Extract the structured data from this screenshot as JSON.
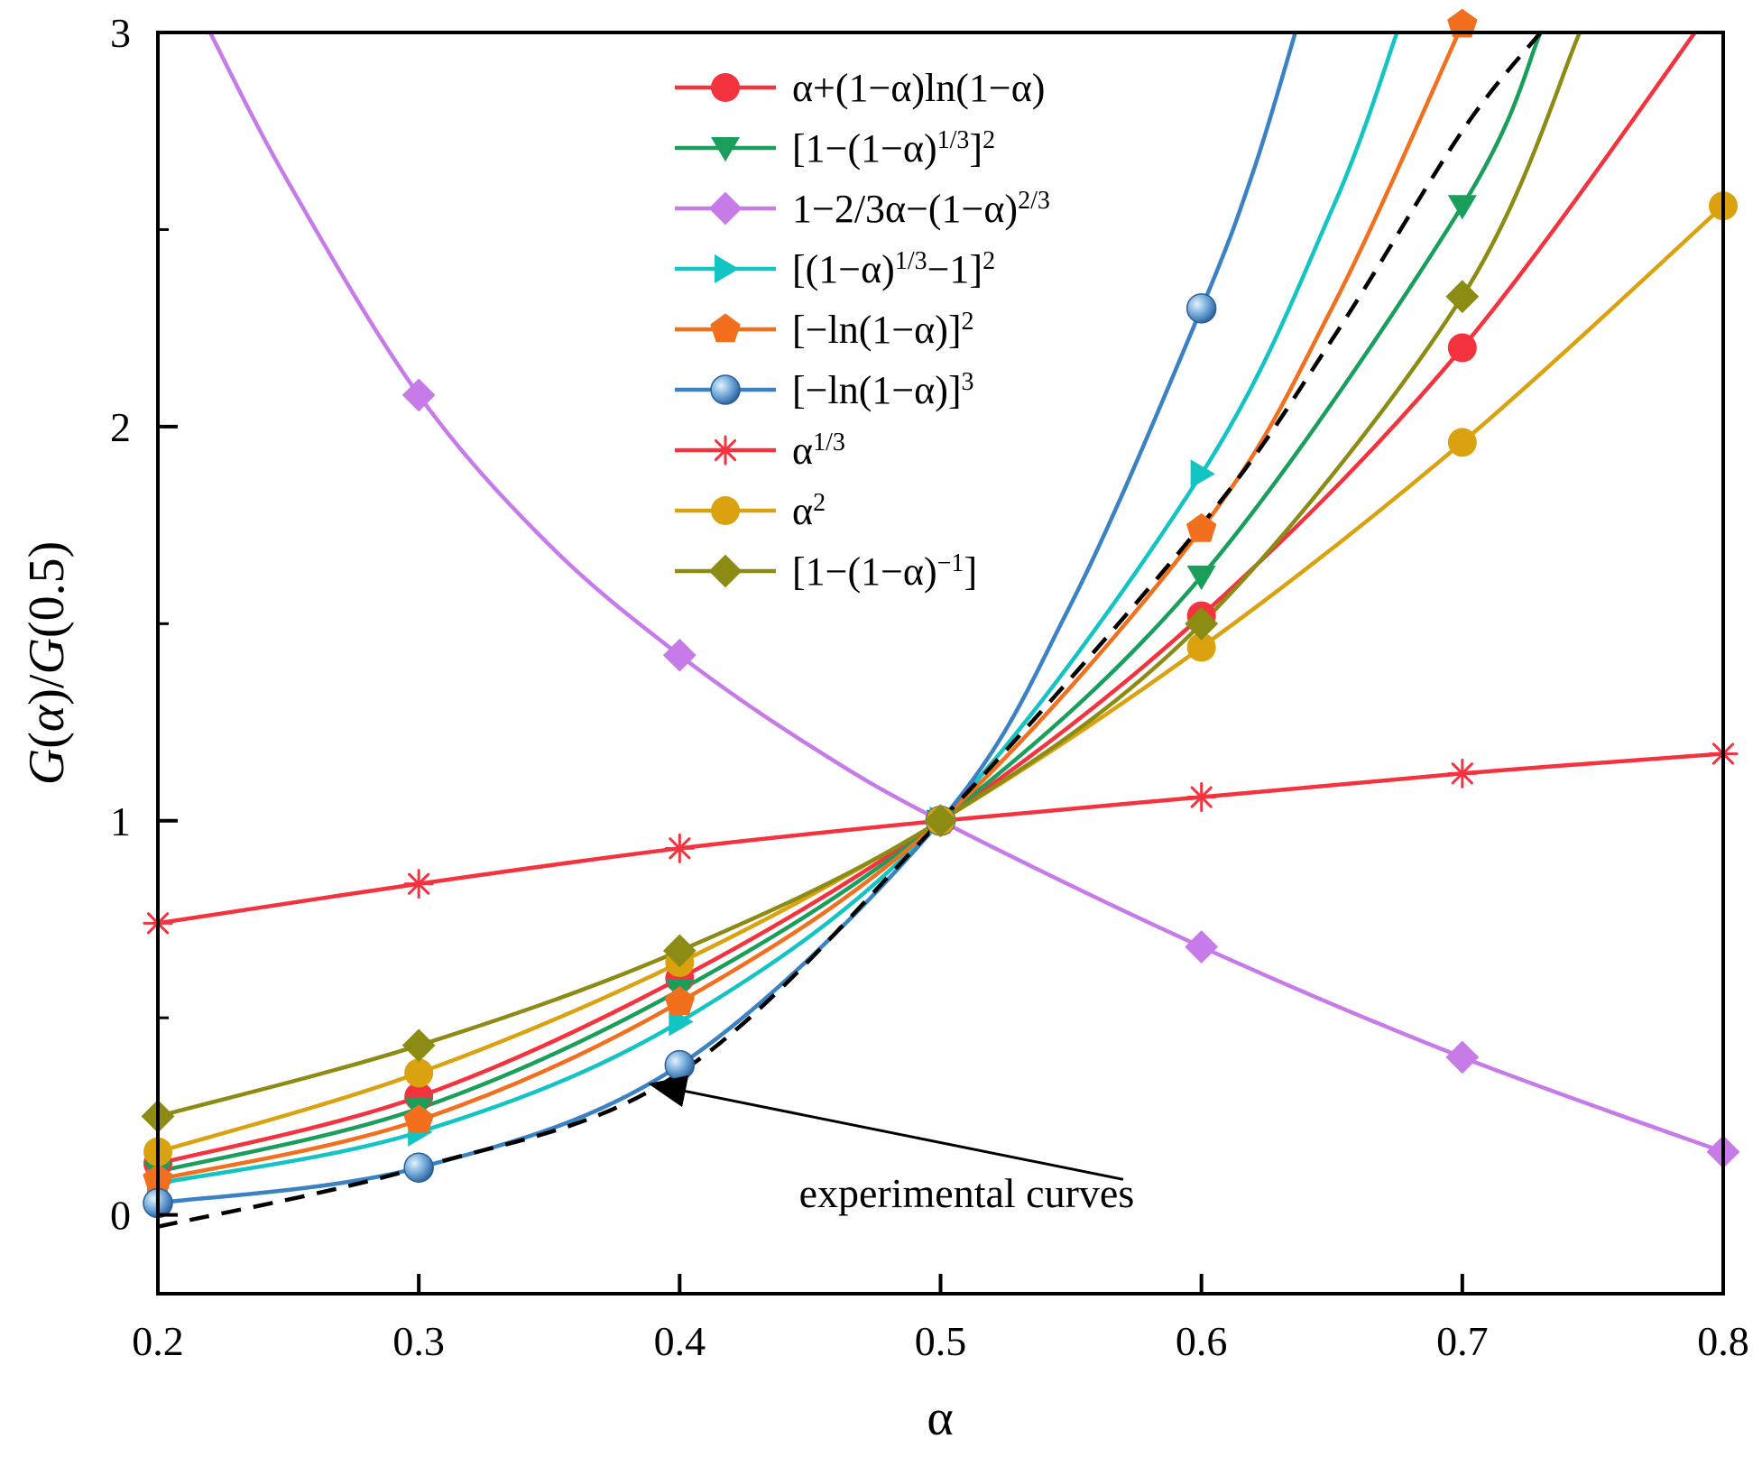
{
  "chart_data": {
    "type": "line",
    "title": "",
    "xlabel": "α",
    "ylabel": {
      "parts": [
        {
          "t": "G",
          "i": true
        },
        {
          "t": "(",
          "i": false
        },
        {
          "t": "α",
          "i": true
        },
        {
          "t": ")/",
          "i": false
        },
        {
          "t": "G",
          "i": true
        },
        {
          "t": "(0.5)",
          "i": false
        }
      ]
    },
    "xlim": [
      0.2,
      0.8
    ],
    "ylim": [
      -0.2,
      3
    ],
    "x_ticks": [
      0.2,
      0.3,
      0.4,
      0.5,
      0.6,
      0.7,
      0.8
    ],
    "x_tick_labels": [
      "0.2",
      "0.3",
      "0.4",
      "0.5",
      "0.6",
      "0.7",
      "0.8"
    ],
    "y_ticks": [
      0,
      1,
      2,
      3
    ],
    "y_tick_labels": [
      "0",
      "1",
      "2",
      "3"
    ],
    "y_minor_ticks": [
      0.5,
      1.5,
      2.5
    ],
    "grid": false,
    "legend_position": "top-center",
    "series": [
      {
        "legend": {
          "parts": [
            {
              "t": "α+(1−α)ln(1−α)"
            }
          ]
        },
        "color": "#f5333f",
        "marker": "circle",
        "x": [
          0.2,
          0.3,
          0.4,
          0.5,
          0.6,
          0.7,
          0.8,
          0.79
        ],
        "y": [
          0.13,
          0.3,
          0.6,
          1.0,
          1.52,
          2.2,
          3.1,
          3.0
        ],
        "markers_at": [
          0.2,
          0.3,
          0.4,
          0.5,
          0.6,
          0.7
        ]
      },
      {
        "legend": {
          "parts": [
            {
              "t": "[1−(1−α)"
            },
            {
              "t": "1/3",
              "s": "sup"
            },
            {
              "t": "]"
            },
            {
              "t": "2",
              "s": "sup"
            }
          ]
        },
        "color": "#1a9e5c",
        "marker": "triangle-down",
        "x": [
          0.2,
          0.3,
          0.4,
          0.5,
          0.6,
          0.7,
          0.73
        ],
        "y": [
          0.11,
          0.27,
          0.57,
          1.0,
          1.62,
          2.56,
          3.0
        ],
        "markers_at": [
          0.2,
          0.3,
          0.4,
          0.5,
          0.6,
          0.7
        ]
      },
      {
        "legend": {
          "parts": [
            {
              "t": "1−2/3α−(1−α)"
            },
            {
              "t": "2/3",
              "s": "sup"
            }
          ]
        },
        "color": "#c77be8",
        "marker": "diamond",
        "x": [
          0.22,
          0.25,
          0.3,
          0.35,
          0.4,
          0.45,
          0.5,
          0.6,
          0.7,
          0.8
        ],
        "y": [
          3.0,
          2.62,
          2.08,
          1.7,
          1.42,
          1.19,
          1.0,
          0.68,
          0.4,
          0.16
        ],
        "markers_at": [
          0.3,
          0.4,
          0.5,
          0.6,
          0.7,
          0.8
        ]
      },
      {
        "legend": {
          "parts": [
            {
              "t": "[(1−α)"
            },
            {
              "t": "1/3",
              "s": "sup"
            },
            {
              "t": "−1]"
            },
            {
              "t": "2",
              "s": "sup"
            }
          ]
        },
        "color": "#12c4c4",
        "marker": "triangle-right",
        "x": [
          0.2,
          0.3,
          0.4,
          0.5,
          0.6,
          0.65,
          0.675
        ],
        "y": [
          0.08,
          0.21,
          0.49,
          1.0,
          1.88,
          2.55,
          3.0
        ],
        "markers_at": [
          0.2,
          0.3,
          0.4,
          0.5,
          0.6
        ]
      },
      {
        "legend": {
          "parts": [
            {
              "t": "[−ln(1−α)]"
            },
            {
              "t": "2",
              "s": "sup"
            }
          ]
        },
        "color": "#f26f1e",
        "marker": "pentagon",
        "x": [
          0.2,
          0.3,
          0.4,
          0.5,
          0.6,
          0.65,
          0.7
        ],
        "y": [
          0.09,
          0.24,
          0.54,
          1.0,
          1.74,
          2.3,
          3.02
        ],
        "markers_at": [
          0.2,
          0.3,
          0.4,
          0.5,
          0.6,
          0.7
        ]
      },
      {
        "legend": {
          "parts": [
            {
              "t": "[−ln(1−α)]"
            },
            {
              "t": "3",
              "s": "sup"
            }
          ]
        },
        "color": "#3b82c4",
        "marker": "sphere",
        "x": [
          0.2,
          0.3,
          0.4,
          0.5,
          0.55,
          0.6,
          0.62,
          0.636
        ],
        "y": [
          0.03,
          0.12,
          0.38,
          1.0,
          1.55,
          2.3,
          2.65,
          3.0
        ],
        "markers_at": [
          0.2,
          0.3,
          0.4,
          0.5,
          0.6
        ]
      },
      {
        "legend": {
          "parts": [
            {
              "t": "α"
            },
            {
              "t": "1/3",
              "s": "sup"
            }
          ]
        },
        "color": "#f5333f",
        "marker": "star",
        "x": [
          0.2,
          0.3,
          0.4,
          0.5,
          0.6,
          0.7,
          0.8
        ],
        "y": [
          0.74,
          0.84,
          0.93,
          1.0,
          1.06,
          1.12,
          1.17
        ],
        "markers_at": [
          0.2,
          0.3,
          0.4,
          0.5,
          0.6,
          0.7,
          0.8
        ]
      },
      {
        "legend": {
          "parts": [
            {
              "t": "α"
            },
            {
              "t": "2",
              "s": "sup"
            }
          ]
        },
        "color": "#daa20e",
        "marker": "hexagon",
        "x": [
          0.2,
          0.3,
          0.4,
          0.5,
          0.6,
          0.7,
          0.8
        ],
        "y": [
          0.16,
          0.36,
          0.64,
          1.0,
          1.44,
          1.96,
          2.56
        ],
        "markers_at": [
          0.2,
          0.3,
          0.4,
          0.5,
          0.6,
          0.7,
          0.8
        ]
      },
      {
        "legend": {
          "parts": [
            {
              "t": "[1−(1−α)"
            },
            {
              "t": "−1",
              "s": "sup"
            },
            {
              "t": "]"
            }
          ]
        },
        "color": "#8c8c14",
        "marker": "diamond",
        "x": [
          0.2,
          0.3,
          0.4,
          0.5,
          0.6,
          0.7,
          0.745
        ],
        "y": [
          0.25,
          0.43,
          0.67,
          1.0,
          1.5,
          2.33,
          3.0
        ],
        "markers_at": [
          0.2,
          0.3,
          0.4,
          0.5,
          0.6,
          0.7
        ]
      }
    ],
    "experimental_curve": {
      "style": "dashed",
      "color": "#000000",
      "x": [
        0.2,
        0.3,
        0.4,
        0.5,
        0.6,
        0.65,
        0.7,
        0.73
      ],
      "y": [
        -0.03,
        0.12,
        0.36,
        1.0,
        1.75,
        2.22,
        2.75,
        3.0
      ]
    },
    "annotation": {
      "text": "experimental curves",
      "text_anchor": [
        0.51,
        0.02
      ],
      "arrow_from": [
        0.57,
        0.09
      ],
      "arrow_to": [
        0.39,
        0.33
      ]
    }
  }
}
